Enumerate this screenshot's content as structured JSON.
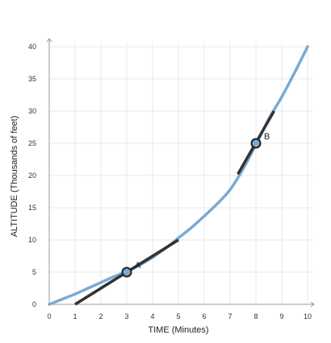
{
  "chart_data": {
    "type": "line",
    "xlabel": "TIME (Minutes)",
    "ylabel": "ALTITUDE (Thousands of feet)",
    "xlim": [
      0,
      10
    ],
    "ylim": [
      0,
      40
    ],
    "x_ticks": [
      "0",
      "1",
      "2",
      "3",
      "4",
      "5",
      "6",
      "7",
      "8",
      "9",
      "10"
    ],
    "y_ticks": [
      "0",
      "5",
      "10",
      "15",
      "20",
      "25",
      "30",
      "35",
      "40"
    ],
    "grid": true,
    "curve": {
      "x": [
        0,
        0.5,
        1,
        1.5,
        2,
        2.5,
        3,
        3.5,
        4,
        4.5,
        5,
        5.5,
        6,
        6.5,
        7,
        7.5,
        8,
        8.5,
        9,
        9.5,
        10
      ],
      "y": [
        0,
        0.8,
        1.6,
        2.5,
        3.4,
        4.3,
        5.1,
        6.1,
        7.3,
        8.7,
        10.3,
        11.9,
        13.7,
        15.6,
        17.8,
        21.0,
        24.8,
        28.8,
        32.2,
        36.0,
        40.0
      ],
      "color": "#7aaad4"
    },
    "tangents": [
      {
        "x": [
          1,
          5
        ],
        "y": [
          0,
          10
        ],
        "color": "#333333"
      },
      {
        "x": [
          7.3,
          8.7
        ],
        "y": [
          20.2,
          30.0
        ],
        "color": "#333333"
      }
    ],
    "points": [
      {
        "label": "A",
        "x": 3,
        "y": 5
      },
      {
        "label": "B",
        "x": 8,
        "y": 25
      }
    ]
  }
}
